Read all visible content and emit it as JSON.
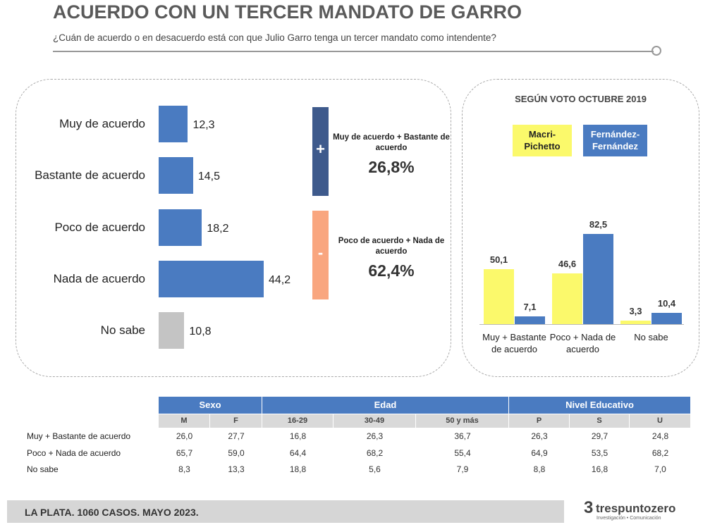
{
  "header": {
    "title": "ACUERDO CON UN TERCER MANDATO DE GARRO",
    "subtitle": "¿Cuán de acuerdo o en desacuerdo está con que Julio Garro tenga un tercer mandato como intendente?"
  },
  "chart_data": [
    {
      "type": "hbar",
      "categories": [
        "Muy de acuerdo",
        "Bastante de acuerdo",
        "Poco de acuerdo",
        "Nada de acuerdo",
        "No sabe"
      ],
      "values": [
        12.3,
        14.5,
        18.2,
        44.2,
        10.8
      ],
      "value_labels": [
        "12,3",
        "14,5",
        "18,2",
        "44,2",
        "10,8"
      ],
      "colors": [
        "#4a7bc1",
        "#4a7bc1",
        "#4a7bc1",
        "#4a7bc1",
        "#c4c4c4"
      ]
    },
    {
      "type": "grouped_bar",
      "title": "SEGÚN VOTO OCTUBRE 2019",
      "categories": [
        "Muy + Bastante de acuerdo",
        "Poco + Nada de acuerdo",
        "No sabe"
      ],
      "series": [
        {
          "name": "Macri-Pichetto",
          "color": "#fbf96b",
          "values": [
            50.1,
            46.6,
            3.3
          ],
          "value_labels": [
            "50,1",
            "46,6",
            "3,3"
          ]
        },
        {
          "name": "Fernández-Fernández",
          "color": "#4a7bc1",
          "values": [
            7.1,
            82.5,
            10.4
          ],
          "value_labels": [
            "7,1",
            "82,5",
            "10,4"
          ]
        }
      ]
    }
  ],
  "summary": [
    {
      "sign": "+",
      "label": "Muy de acuerdo + Bastante de acuerdo",
      "value": "26,8%",
      "color": "#3e5a8c"
    },
    {
      "sign": "-",
      "label": "Poco de acuerdo + Nada de acuerdo",
      "value": "62,4%",
      "color": "#f9a67f"
    }
  ],
  "table": {
    "groups": [
      {
        "name": "Sexo",
        "columns": [
          "M",
          "F"
        ]
      },
      {
        "name": "Edad",
        "columns": [
          "16-29",
          "30-49",
          "50 y más"
        ]
      },
      {
        "name": "Nivel Educativo",
        "columns": [
          "P",
          "S",
          "U"
        ]
      }
    ],
    "rows": [
      {
        "label": "Muy + Bastante de acuerdo",
        "cells": [
          "26,0",
          "27,7",
          "16,8",
          "26,3",
          "36,7",
          "26,3",
          "29,7",
          "24,8"
        ]
      },
      {
        "label": "Poco + Nada de acuerdo",
        "cells": [
          "65,7",
          "59,0",
          "64,4",
          "68,2",
          "55,4",
          "64,9",
          "53,5",
          "68,2"
        ]
      },
      {
        "label": "No sabe",
        "cells": [
          "8,3",
          "13,3",
          "18,8",
          "5,6",
          "7,9",
          "8,8",
          "16,8",
          "7,0"
        ]
      }
    ]
  },
  "footer": {
    "text": "LA PLATA. 1060 CASOS. MAYO 2023.",
    "logo": {
      "mark": "3",
      "name": "trespuntozero",
      "tagline": "Investigación • Comunicación"
    }
  }
}
